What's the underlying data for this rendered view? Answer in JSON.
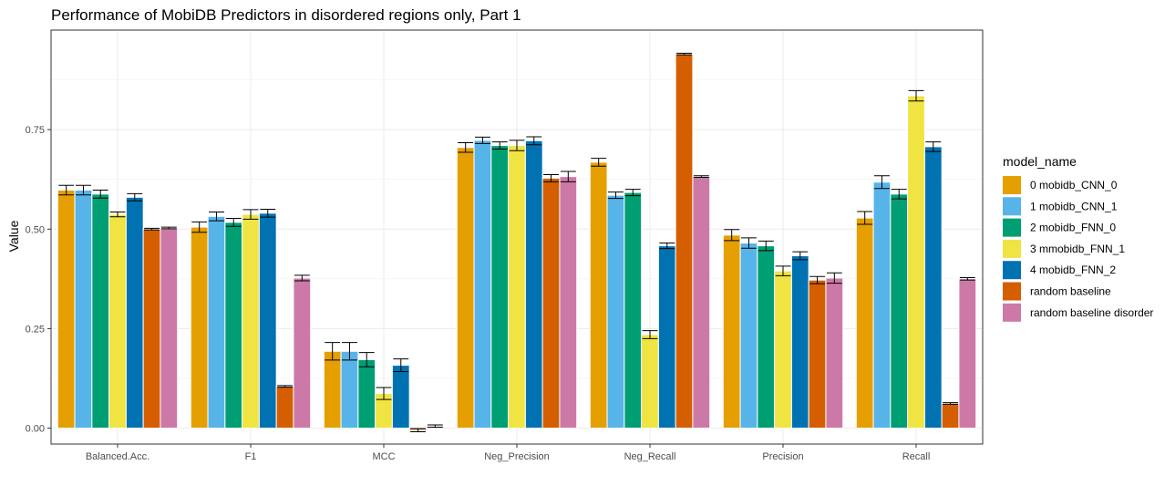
{
  "chart_data": {
    "type": "bar",
    "title": "Performance of MobiDB Predictors in disordered regions only, Part 1",
    "xlabel": "",
    "ylabel": "Value",
    "ylim": [
      -0.04,
      1.0
    ],
    "yticks": [
      0.0,
      0.25,
      0.5,
      0.75
    ],
    "yticklabels": [
      "0.00",
      "0.25",
      "0.50",
      "0.75"
    ],
    "grid": true,
    "legend_position": "right",
    "legend_title": "model_name",
    "categories": [
      "Balanced.Acc.",
      "F1",
      "MCC",
      "Neg_Precision",
      "Neg_Recall",
      "Precision",
      "Recall"
    ],
    "series": [
      {
        "name": "0 mobidb_CNN_0",
        "color": "#E69F00",
        "values": [
          0.598,
          0.505,
          0.193,
          0.705,
          0.668,
          0.485,
          0.528
        ],
        "errors": [
          0.012,
          0.013,
          0.022,
          0.012,
          0.01,
          0.014,
          0.016
        ]
      },
      {
        "name": "1 mobidb_CNN_1",
        "color": "#56B4E9",
        "values": [
          0.598,
          0.532,
          0.193,
          0.723,
          0.585,
          0.465,
          0.618
        ],
        "errors": [
          0.012,
          0.011,
          0.022,
          0.008,
          0.008,
          0.013,
          0.016
        ]
      },
      {
        "name": "2 mobidb_FNN_0",
        "color": "#009E73",
        "values": [
          0.588,
          0.517,
          0.172,
          0.71,
          0.592,
          0.458,
          0.588
        ],
        "errors": [
          0.01,
          0.01,
          0.018,
          0.009,
          0.008,
          0.012,
          0.012
        ]
      },
      {
        "name": "3 mmobidb_FNN_1",
        "color": "#F0E442",
        "values": [
          0.537,
          0.537,
          0.087,
          0.71,
          0.235,
          0.395,
          0.835
        ],
        "errors": [
          0.006,
          0.012,
          0.015,
          0.013,
          0.01,
          0.012,
          0.013
        ]
      },
      {
        "name": "4 mobidb_FNN_2",
        "color": "#0072B2",
        "values": [
          0.58,
          0.54,
          0.158,
          0.722,
          0.458,
          0.433,
          0.707
        ],
        "errors": [
          0.009,
          0.01,
          0.016,
          0.01,
          0.007,
          0.01,
          0.012
        ]
      },
      {
        "name": "random baseline",
        "color": "#D55E00",
        "values": [
          0.5,
          0.105,
          -0.005,
          0.628,
          0.94,
          0.372,
          0.062
        ],
        "errors": [
          0.002,
          0.002,
          0.004,
          0.009,
          0.002,
          0.009,
          0.002
        ]
      },
      {
        "name": "random baseline disorder",
        "color": "#CC79A7",
        "values": [
          0.503,
          0.377,
          0.005,
          0.632,
          0.632,
          0.377,
          0.375
        ],
        "errors": [
          0.002,
          0.007,
          0.003,
          0.013,
          0.002,
          0.013,
          0.003
        ]
      }
    ]
  }
}
